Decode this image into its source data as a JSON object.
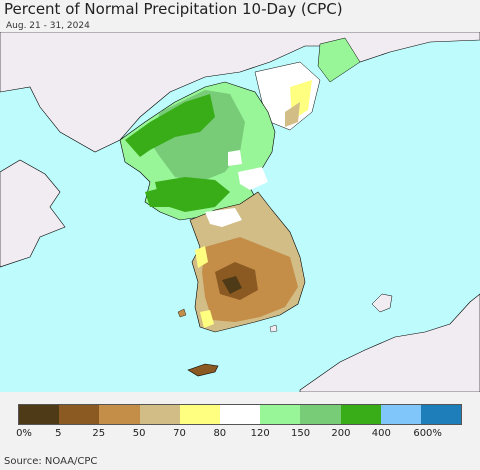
{
  "header": {
    "title": "Percent of Normal Precipitation 10-Day (CPC)",
    "date_range": "Aug. 21 - 31, 2024"
  },
  "legend": {
    "colors": [
      "#4e3a17",
      "#8b5a22",
      "#c48d48",
      "#d2bd86",
      "#ffff80",
      "#ffffff",
      "#98f598",
      "#78cc78",
      "#38ad17",
      "#80c6fa",
      "#1e7eb9"
    ],
    "ticks": [
      "0%",
      "5",
      "25",
      "50",
      "70",
      "80",
      "120",
      "150",
      "200",
      "400",
      "600%"
    ]
  },
  "map": {
    "ocean_color": "#bdfbfc",
    "land_color": "#f0ecf2"
  },
  "footer": {
    "source": "Source: NOAA/CPC"
  }
}
